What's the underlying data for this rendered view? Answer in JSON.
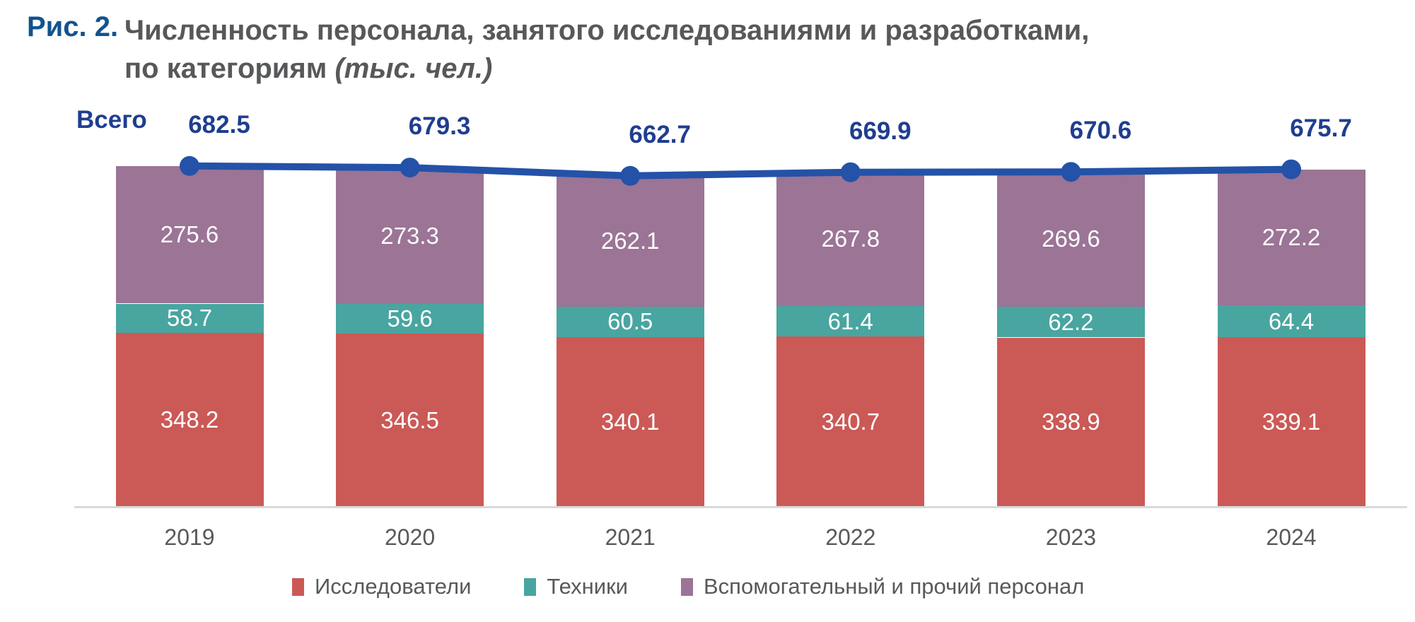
{
  "figure": {
    "label": "Рис. 2.",
    "title_line1": "Численность персонала, занятого исследованиями и разработками,",
    "title_line2": "по категориям",
    "title_units": "(тыс. чел.)"
  },
  "chart_data": {
    "type": "bar",
    "stacked": true,
    "title": "Численность персонала, занятого исследованиями и разработками, по категориям (тыс. чел.)",
    "units": "тыс. чел.",
    "categories": [
      "2019",
      "2020",
      "2021",
      "2022",
      "2023",
      "2024"
    ],
    "series": [
      {
        "name": "Исследователи",
        "color": "#CB5956",
        "values": [
          348.2,
          346.5,
          340.1,
          340.7,
          338.9,
          339.1
        ]
      },
      {
        "name": "Техники",
        "color": "#49A5A0",
        "values": [
          58.7,
          59.6,
          60.5,
          61.4,
          62.2,
          64.4
        ]
      },
      {
        "name": "Вспомогательный и прочий персонал",
        "color": "#9B7496",
        "values": [
          275.6,
          273.3,
          262.1,
          267.8,
          269.6,
          272.2
        ]
      }
    ],
    "total_line": {
      "label": "Всего",
      "color": "#2452A8",
      "values": [
        682.5,
        679.3,
        662.7,
        669.9,
        670.6,
        675.7
      ]
    },
    "xlabel": "",
    "ylabel": "",
    "value_axis": "hidden",
    "grid": false,
    "legend_position": "bottom"
  },
  "colors": {
    "figure_label_blue": "#11538E",
    "title_gray": "#57585A",
    "total_navy": "#1F3E8F",
    "line_blue": "#2452A8",
    "axis_gray": "#D9D9D9",
    "year_gray": "#595959",
    "bar_label_white": "#FFFFFF"
  }
}
